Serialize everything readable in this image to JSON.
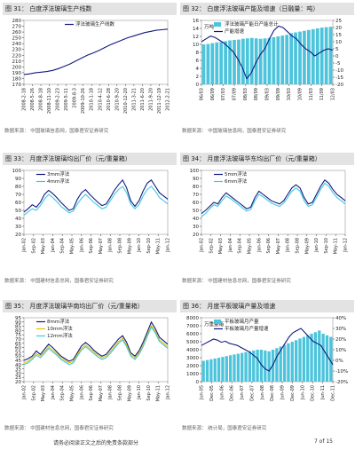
{
  "colors": {
    "navy": "#111a80",
    "cyan": "#3fc8e0",
    "yellow": "#e6c200",
    "bar": "#4cc4dc",
    "red": "#d8122a",
    "axis": "#333333",
    "grid": "#dddddd",
    "caption_bg": "#e3e3e3"
  },
  "footer": {
    "disclaimer": "请务必阅读正文之后的免责条款部分",
    "page": "7 of 15"
  },
  "panels": [
    {
      "caption": "图 31：  白度浮法玻璃生产线数",
      "source": "数据来源：  中国玻璃信息网，国泰君安证券研究",
      "chart_data": {
        "type": "line",
        "title": "",
        "ylim": [
          170,
          280
        ],
        "yticks": [
          170,
          180,
          190,
          200,
          210,
          220,
          230,
          240,
          250,
          260,
          270,
          280
        ],
        "xticks": [
          "2008-2-18",
          "2008-5-26",
          "2008-8-18",
          "2008-11-10",
          "2009-2-23",
          "2009-5-11",
          "2009-8-3",
          "2009-10-26",
          "2010-1-18",
          "2010-4-12",
          "2010-6-28",
          "2010-9-20",
          "2010-12-20",
          "2011-3-21",
          "2011-6-20",
          "2011-9-20",
          "2011-12-19",
          "2012-2-21"
        ],
        "series": [
          {
            "name": "浮法玻璃生产线数",
            "color": "#111a80",
            "style": "line",
            "values": [
              187,
              188,
              190,
              191,
              192,
              194,
              197,
              201,
              205,
              210,
              215,
              220,
              224,
              228,
              233,
              238,
              242,
              246,
              250,
              253,
              256,
              259,
              261,
              263,
              264,
              265
            ]
          }
        ]
      }
    },
    {
      "caption": "图 32：  白度浮法玻璃产能及增速（日融量：吨）",
      "source": "数据来源：  中国玻璃信息网，国泰君安证券研究",
      "chart_data": {
        "type": "bar+line",
        "ylim": [
          0,
          16
        ],
        "yticks": [
          0,
          2,
          4,
          6,
          8,
          10,
          12,
          14,
          16
        ],
        "ylabel": "万吨",
        "y2lim": [
          -20,
          25
        ],
        "y2ticks": [
          -20,
          -15,
          -10,
          -5,
          0,
          5,
          10,
          15,
          20,
          25
        ],
        "xticks": [
          "06/03",
          "06/09",
          "07/03",
          "07/09",
          "08/03",
          "08/09",
          "09/03",
          "09/09",
          "10/03",
          "10/09",
          "11/03",
          "11/09",
          "12/03"
        ],
        "series": [
          {
            "name": "浮法玻璃产能日产能总计",
            "color": "#4cc4dc",
            "style": "bar",
            "axis": "left",
            "values": [
              10,
              10.1,
              10.3,
              10.5,
              10.6,
              10.8,
              11,
              11.1,
              11.2,
              11.4,
              11.5,
              11.6,
              11.5,
              11.4,
              11.5,
              11.6,
              11.8,
              12,
              12.2,
              12.4,
              12.8,
              13,
              13.2,
              13.4,
              13.6,
              13.8,
              14,
              14.2,
              14.3,
              14.4
            ]
          },
          {
            "name": "产能增速",
            "color": "#111a80",
            "style": "line",
            "axis": "right",
            "values": [
              10,
              12,
              14,
              13,
              11,
              9,
              6,
              3,
              -2,
              -8,
              -16,
              -12,
              -5,
              1,
              5,
              12,
              18,
              21,
              20,
              17,
              14,
              12,
              8,
              5,
              3,
              0,
              2,
              4,
              5,
              4
            ]
          }
        ]
      }
    },
    {
      "caption": "图 33：  月度浮法玻璃均出厂价（元/重量箱）",
      "source": "数据来源：  中国建材信息总网，国泰君安证券研究",
      "chart_data": {
        "type": "line",
        "ylim": [
          20,
          100
        ],
        "yticks": [
          20,
          30,
          40,
          50,
          60,
          70,
          80,
          90,
          100
        ],
        "xticks": [
          "Jan-02",
          "Sep-02",
          "May-03",
          "Jan-04",
          "Sep-04",
          "May-05",
          "Jan-06",
          "Sep-06",
          "May-07",
          "Jan-08",
          "Sep-08",
          "May-09",
          "Jan-10",
          "Sep-10",
          "May-11",
          "Jan-12"
        ],
        "series": [
          {
            "name": "3mm浮法",
            "color": "#111a80",
            "style": "line",
            "values": [
              48,
              52,
              57,
              54,
              60,
              70,
              75,
              71,
              66,
              60,
              55,
              50,
              52,
              64,
              72,
              76,
              70,
              65,
              60,
              56,
              58,
              66,
              75,
              82,
              88,
              78,
              62,
              55,
              62,
              74,
              84,
              88,
              80,
              72,
              68,
              64
            ]
          },
          {
            "name": "4mm浮法",
            "color": "#3fc8e0",
            "style": "line",
            "values": [
              44,
              48,
              52,
              50,
              56,
              64,
              70,
              66,
              61,
              55,
              51,
              47,
              49,
              58,
              65,
              70,
              65,
              60,
              56,
              52,
              54,
              62,
              70,
              76,
              80,
              72,
              58,
              52,
              57,
              68,
              76,
              80,
              74,
              66,
              62,
              58
            ]
          }
        ]
      }
    },
    {
      "caption": "图 34：  月度浮法玻璃华东均出厂价（元/重量箱）",
      "source": "数据来源：  中国建材信息总网，国泰君安证券研究",
      "chart_data": {
        "type": "line",
        "ylim": [
          20,
          100
        ],
        "yticks": [
          20,
          30,
          40,
          50,
          60,
          70,
          80,
          90,
          100
        ],
        "xticks": [
          "Jan-02",
          "Sep-02",
          "May-03",
          "Jan-04",
          "Sep-04",
          "May-05",
          "Jan-06",
          "Sep-06",
          "May-07",
          "Jan-08",
          "Sep-08",
          "May-09",
          "Jan-10",
          "Sep-10",
          "May-11",
          "Jan-12"
        ],
        "series": [
          {
            "name": "5mm浮法",
            "color": "#111a80",
            "style": "line",
            "values": [
              46,
              50,
              55,
              60,
              58,
              66,
              72,
              68,
              64,
              60,
              56,
              52,
              54,
              66,
              74,
              70,
              66,
              62,
              60,
              58,
              62,
              70,
              78,
              82,
              78,
              66,
              58,
              60,
              70,
              80,
              88,
              84,
              76,
              70,
              66,
              62
            ]
          },
          {
            "name": "6mm浮法",
            "color": "#3fc8e0",
            "style": "line",
            "values": [
              42,
              46,
              52,
              57,
              55,
              62,
              68,
              65,
              61,
              57,
              53,
              49,
              51,
              62,
              70,
              67,
              63,
              59,
              57,
              55,
              59,
              66,
              74,
              78,
              74,
              62,
              55,
              57,
              66,
              76,
              84,
              80,
              72,
              66,
              62,
              58
            ]
          }
        ]
      }
    },
    {
      "caption": "图 35：  月度浮法玻璃华南均出厂价（元/重量箱）",
      "source": "数据来源：  中国建材信息总网，国泰君安证券研究",
      "chart_data": {
        "type": "line",
        "ylim": [
          20,
          95
        ],
        "yticks": [
          20,
          25,
          30,
          35,
          40,
          45,
          50,
          55,
          60,
          65,
          70,
          75,
          80,
          85,
          90,
          95
        ],
        "xticks": [
          "Jan-02",
          "Sep-02",
          "May-03",
          "Jan-04",
          "Sep-04",
          "May-05",
          "Jan-06",
          "Sep-06",
          "May-07",
          "Jan-08",
          "Sep-08",
          "May-09",
          "Jan-10",
          "Sep-10",
          "May-11",
          "Jan-12"
        ],
        "series": [
          {
            "name": "8mm浮法",
            "color": "#111a80",
            "style": "line",
            "values": [
              45,
              47,
              50,
              56,
              52,
              58,
              64,
              60,
              55,
              50,
              47,
              44,
              46,
              54,
              62,
              66,
              62,
              57,
              53,
              50,
              52,
              58,
              64,
              70,
              74,
              66,
              54,
              50,
              56,
              66,
              78,
              90,
              82,
              72,
              68,
              64
            ]
          },
          {
            "name": "10mm浮法",
            "color": "#e6c200",
            "style": "line",
            "values": [
              42,
              44,
              48,
              53,
              50,
              55,
              61,
              57,
              53,
              48,
              45,
              42,
              44,
              52,
              59,
              63,
              59,
              55,
              51,
              48,
              50,
              55,
              61,
              67,
              71,
              63,
              52,
              48,
              54,
              63,
              75,
              86,
              79,
              69,
              65,
              61
            ]
          },
          {
            "name": "12mm浮法",
            "color": "#3fc8e0",
            "style": "line",
            "values": [
              40,
              42,
              46,
              51,
              48,
              53,
              59,
              55,
              51,
              46,
              43,
              40,
              42,
              50,
              57,
              61,
              57,
              53,
              49,
              46,
              48,
              53,
              59,
              65,
              69,
              61,
              50,
              46,
              52,
              61,
              73,
              84,
              77,
              67,
              63,
              59
            ]
          }
        ]
      }
    },
    {
      "caption": "图 36：  月度平板玻璃产量及增速",
      "source": "数据来源：  统计局，国泰君安证券研究",
      "chart_data": {
        "type": "bar+line",
        "ylim": [
          0,
          8000
        ],
        "yticks": [
          0,
          1000,
          2000,
          3000,
          4000,
          5000,
          6000,
          7000,
          8000
        ],
        "ylabel": "万重量箱",
        "y2lim": [
          -20,
          40
        ],
        "y2ticks": [
          -20,
          -10,
          0,
          10,
          20,
          30,
          40
        ],
        "y2format": "%",
        "xticks": [
          "Jun-05",
          "Dec-05",
          "Jun-06",
          "Dec-06",
          "Jun-07",
          "Dec-07",
          "Jun-08",
          "Dec-08",
          "Jun-09",
          "Dec-09",
          "Jun-10",
          "Dec-10",
          "Jun-11",
          "Dec-11"
        ],
        "series": [
          {
            "name": "平板玻璃月产量",
            "color": "#4cc4dc",
            "style": "bar",
            "axis": "left",
            "values": [
              2600,
              2700,
              2800,
              2900,
              3000,
              3100,
              3200,
              3300,
              3400,
              3500,
              3600,
              3700,
              3800,
              3900,
              4000,
              4000,
              3900,
              3800,
              4000,
              4200,
              4400,
              4600,
              4800,
              5000,
              5200,
              5400,
              5600,
              5800,
              6000,
              6200,
              6400,
              6000,
              5800,
              5600
            ]
          },
          {
            "name": "平板玻璃月产量增速",
            "color": "#111a80",
            "style": "line",
            "axis": "right",
            "values": [
              14,
              16,
              18,
              20,
              19,
              17,
              18,
              16,
              15,
              14,
              12,
              10,
              8,
              5,
              2,
              -4,
              -8,
              -10,
              -4,
              4,
              10,
              16,
              22,
              26,
              28,
              30,
              26,
              22,
              18,
              16,
              14,
              8,
              2,
              -4
            ]
          }
        ]
      }
    }
  ]
}
